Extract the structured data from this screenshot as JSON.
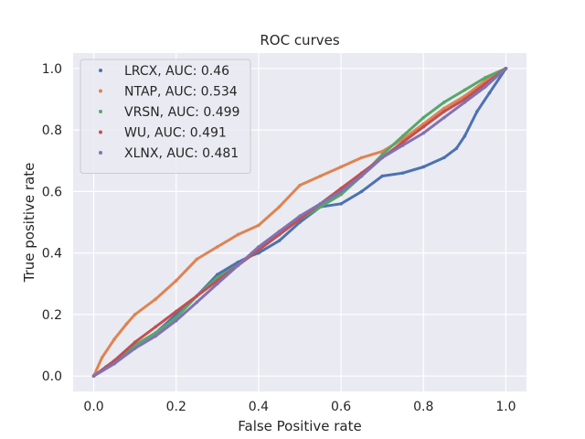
{
  "chart_data": {
    "type": "scatter",
    "title": "ROC curves",
    "xlabel": "False Positive rate",
    "ylabel": "True positive rate",
    "xlim": [
      -0.05,
      1.05
    ],
    "ylim": [
      -0.05,
      1.05
    ],
    "xticks": [
      "0.0",
      "0.2",
      "0.4",
      "0.6",
      "0.8",
      "1.0"
    ],
    "yticks": [
      "0.0",
      "0.2",
      "0.4",
      "0.6",
      "0.8",
      "1.0"
    ],
    "grid": true,
    "legend_position": "top-left",
    "series": [
      {
        "name": "LRCX, AUC: 0.46",
        "color": "#4c72b0",
        "x": [
          0,
          0.03,
          0.06,
          0.1,
          0.15,
          0.2,
          0.25,
          0.3,
          0.35,
          0.38,
          0.4,
          0.45,
          0.5,
          0.55,
          0.6,
          0.65,
          0.7,
          0.75,
          0.8,
          0.85,
          0.88,
          0.9,
          0.93,
          0.96,
          1.0
        ],
        "y": [
          0,
          0.03,
          0.06,
          0.1,
          0.14,
          0.2,
          0.26,
          0.33,
          0.37,
          0.39,
          0.4,
          0.44,
          0.5,
          0.55,
          0.56,
          0.6,
          0.65,
          0.66,
          0.68,
          0.71,
          0.74,
          0.78,
          0.86,
          0.92,
          1.0
        ]
      },
      {
        "name": "NTAP, AUC: 0.534",
        "color": "#dd8452",
        "x": [
          0,
          0.02,
          0.05,
          0.08,
          0.1,
          0.15,
          0.2,
          0.25,
          0.3,
          0.35,
          0.4,
          0.45,
          0.5,
          0.55,
          0.6,
          0.65,
          0.7,
          0.75,
          0.8,
          0.85,
          0.9,
          0.95,
          1.0
        ],
        "y": [
          0,
          0.06,
          0.12,
          0.17,
          0.2,
          0.25,
          0.31,
          0.38,
          0.42,
          0.46,
          0.49,
          0.55,
          0.62,
          0.65,
          0.68,
          0.71,
          0.73,
          0.77,
          0.82,
          0.87,
          0.91,
          0.96,
          1.0
        ]
      },
      {
        "name": "VRSN, AUC: 0.499",
        "color": "#55a868",
        "x": [
          0,
          0.05,
          0.1,
          0.15,
          0.2,
          0.25,
          0.3,
          0.35,
          0.4,
          0.45,
          0.5,
          0.55,
          0.6,
          0.65,
          0.7,
          0.75,
          0.8,
          0.85,
          0.9,
          0.95,
          1.0
        ],
        "y": [
          0,
          0.05,
          0.1,
          0.14,
          0.19,
          0.26,
          0.32,
          0.36,
          0.41,
          0.46,
          0.51,
          0.55,
          0.59,
          0.65,
          0.72,
          0.78,
          0.84,
          0.89,
          0.93,
          0.97,
          1.0
        ]
      },
      {
        "name": "WU, AUC: 0.491",
        "color": "#c44e52",
        "x": [
          0,
          0.05,
          0.1,
          0.15,
          0.2,
          0.25,
          0.3,
          0.35,
          0.4,
          0.45,
          0.5,
          0.55,
          0.6,
          0.65,
          0.7,
          0.75,
          0.8,
          0.85,
          0.9,
          0.95,
          1.0
        ],
        "y": [
          0,
          0.05,
          0.11,
          0.16,
          0.21,
          0.26,
          0.31,
          0.36,
          0.41,
          0.46,
          0.51,
          0.56,
          0.61,
          0.66,
          0.71,
          0.76,
          0.81,
          0.86,
          0.9,
          0.95,
          1.0
        ]
      },
      {
        "name": "XLNX, AUC: 0.481",
        "color": "#8172b3",
        "x": [
          0,
          0.05,
          0.1,
          0.15,
          0.2,
          0.25,
          0.3,
          0.35,
          0.4,
          0.45,
          0.5,
          0.55,
          0.6,
          0.65,
          0.7,
          0.75,
          0.8,
          0.85,
          0.9,
          0.95,
          1.0
        ],
        "y": [
          0,
          0.04,
          0.09,
          0.13,
          0.18,
          0.24,
          0.3,
          0.36,
          0.42,
          0.47,
          0.52,
          0.56,
          0.6,
          0.65,
          0.71,
          0.75,
          0.79,
          0.84,
          0.89,
          0.94,
          1.0
        ]
      }
    ]
  }
}
